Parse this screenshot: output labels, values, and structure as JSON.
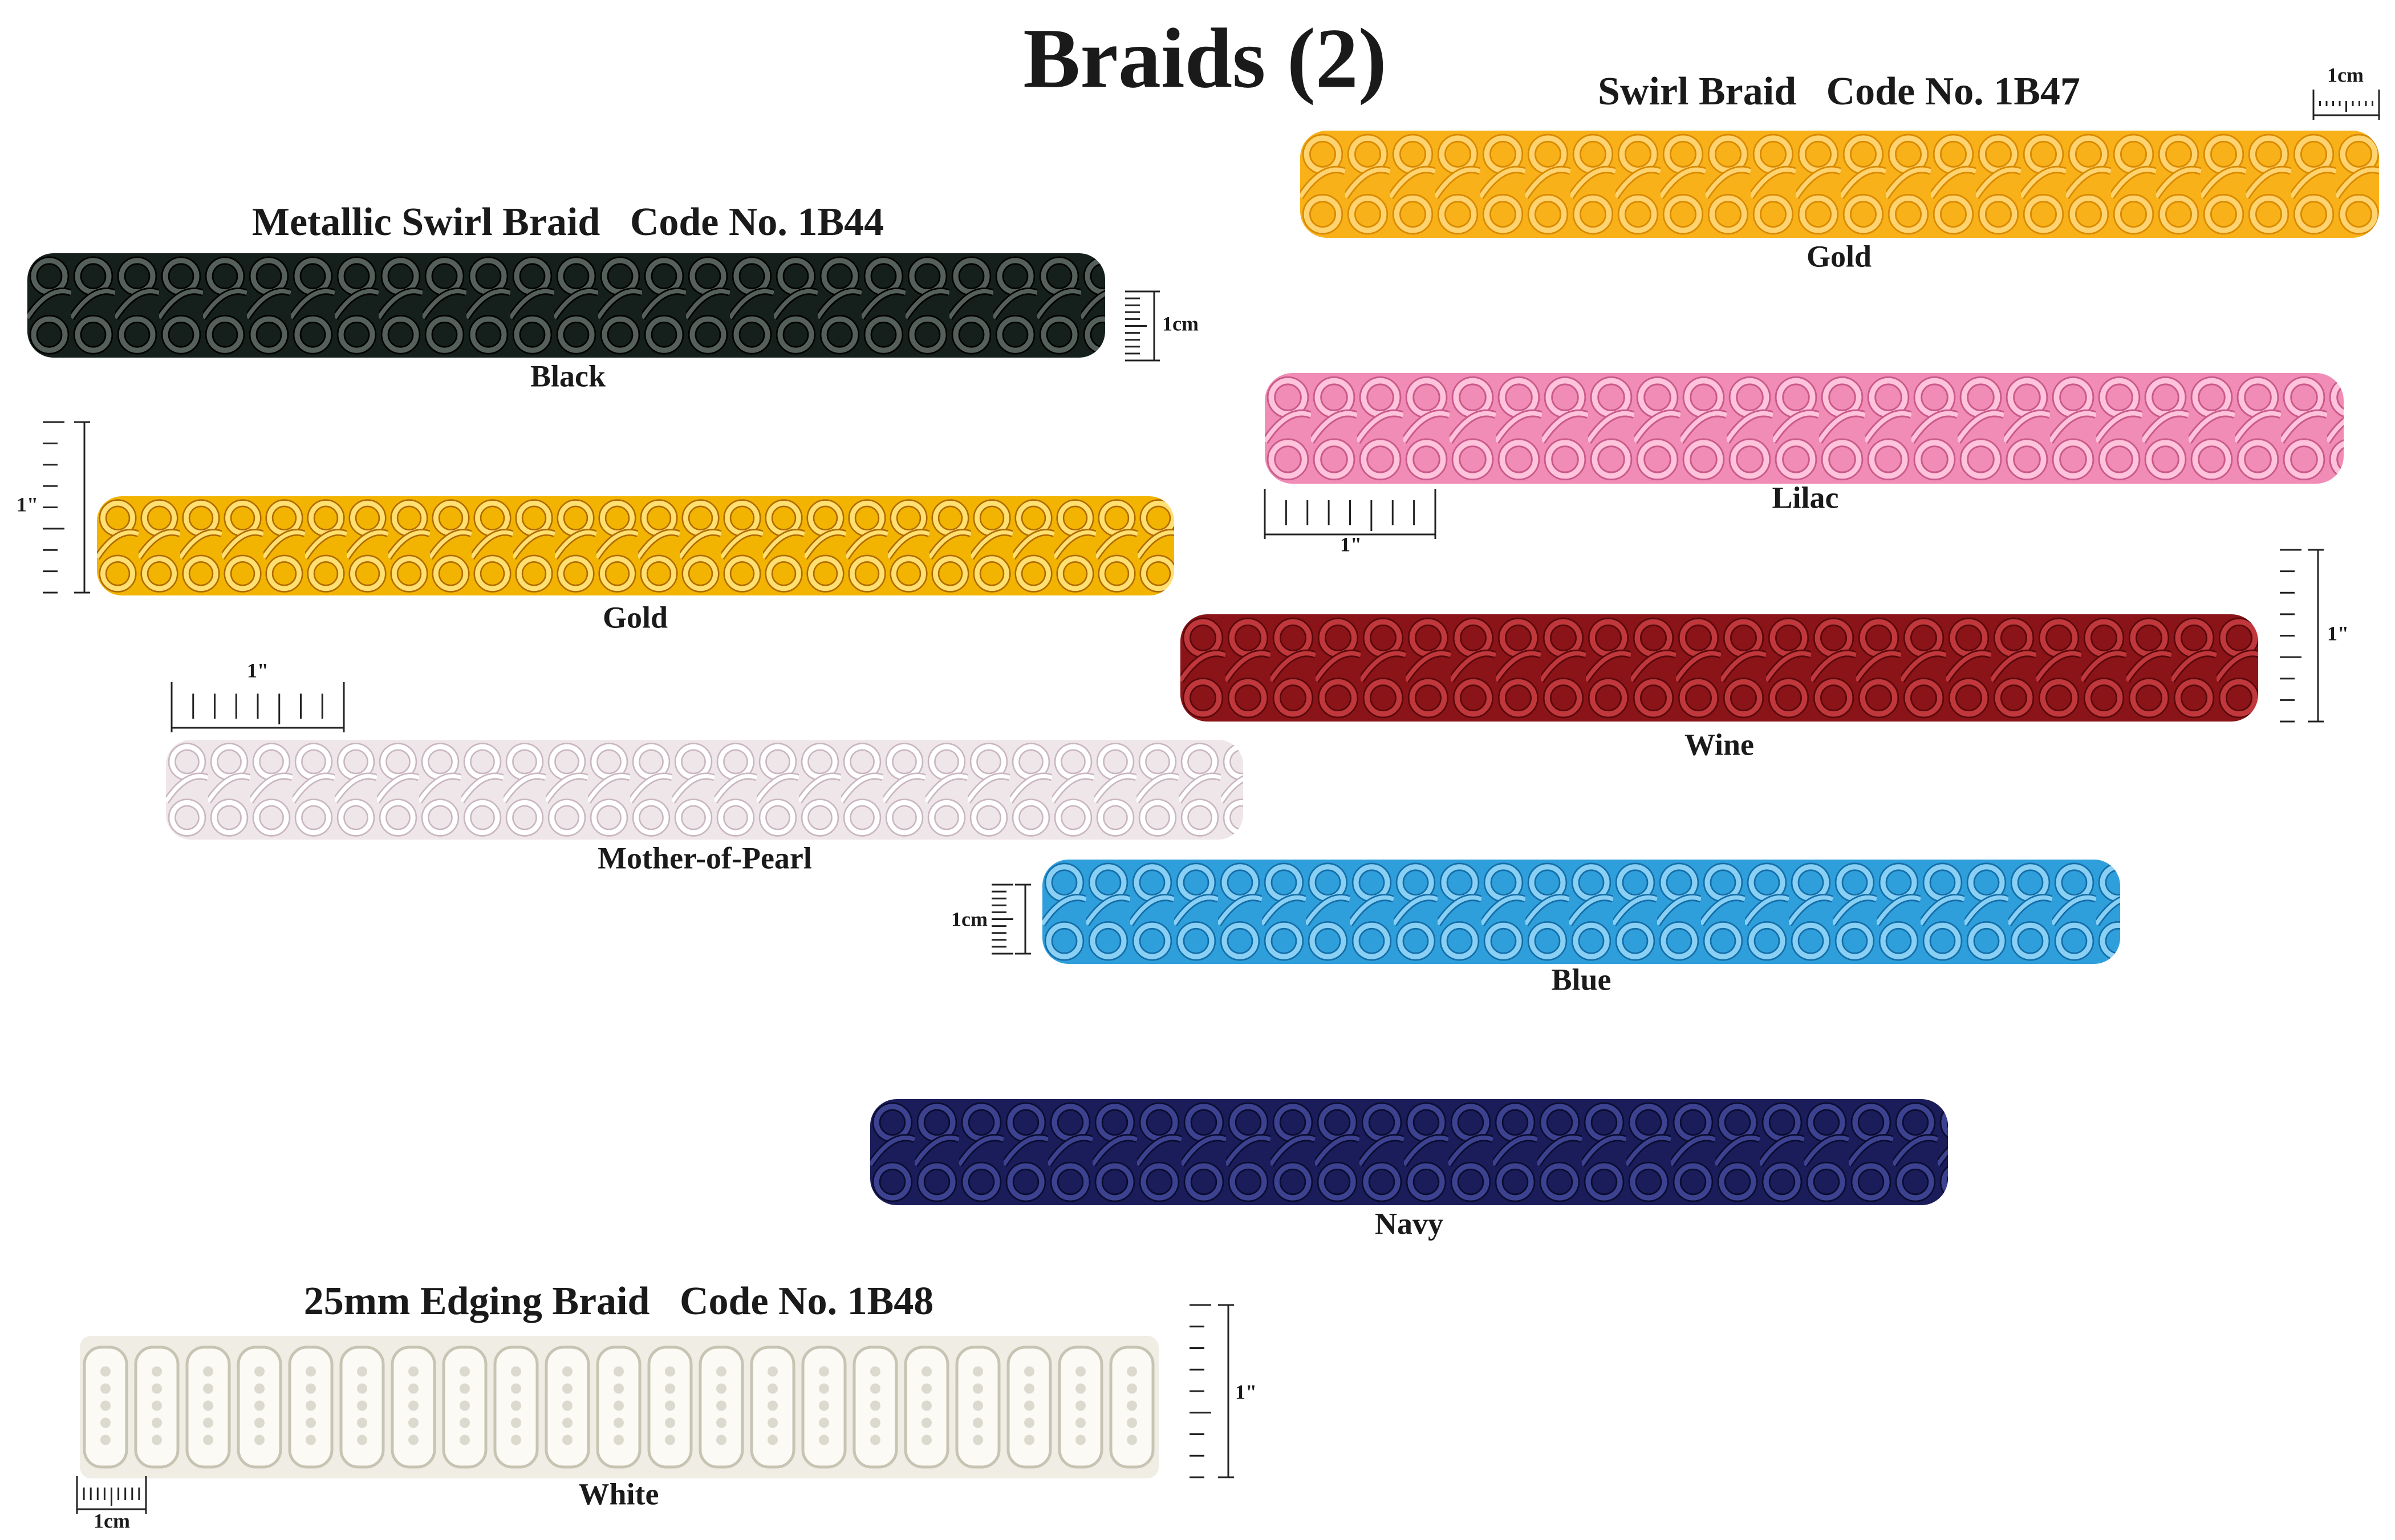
{
  "title": "Braids (2)",
  "sections": [
    {
      "heading": "Metallic Swirl Braid   Code No. 1B44",
      "swatches": [
        "Black",
        "Gold",
        "Mother-of-Pearl"
      ]
    },
    {
      "heading": "Swirl Braid   Code No. 1B47",
      "swatches": [
        "Gold",
        "Lilac",
        "Wine",
        "Blue",
        "Navy"
      ]
    },
    {
      "heading": "25mm Edging Braid   Code No. 1B48",
      "swatches": [
        "White"
      ]
    }
  ],
  "rulers": [
    "1cm",
    "1cm",
    "1\"",
    "1\"",
    "1\"",
    "1\"",
    "1cm",
    "1\"",
    "1cm"
  ]
}
